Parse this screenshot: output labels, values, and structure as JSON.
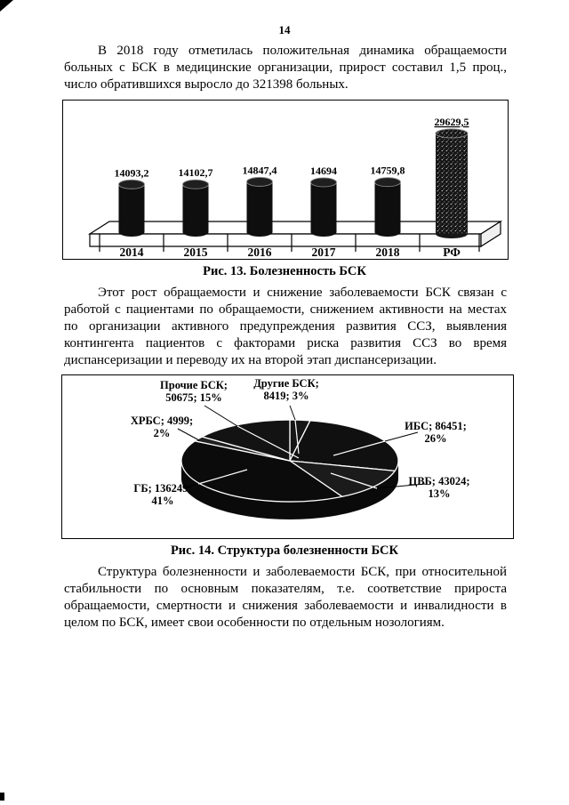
{
  "page": {
    "number": "14"
  },
  "paragraphs": {
    "p1": "В 2018 году отметилась положительная динамика обращаемости больных с БСК в медицинские организации, прирост составил 1,5 проц., число обратившихся выросло до 321398 больных.",
    "p2": "Этот рост обращаемости и снижение заболеваемости БСК связан с работой с пациентами по обращаемости, снижением активности на местах по организации активного предупреждения развития ССЗ, выявления контингента пациентов с факторами риска развития ССЗ во время диспансеризации и переводу их на второй этап диспансеризации.",
    "p3": "Структура болезненности и заболеваемости БСК, при относительной стабильности по основным показателям, т.е. соответствие прироста обращаемости, смертности и снижения заболеваемости и инвалидности в целом по БСК, имеет свои особенности по отдельным нозологиям."
  },
  "figures": {
    "fig13_caption": "Рис. 13. Болезненность БСК",
    "fig14_caption": "Рис. 14. Структура болезненности БСК"
  },
  "chart_data": [
    {
      "type": "bar",
      "title": "Болезненность БСК",
      "categories": [
        "2014",
        "2015",
        "2016",
        "2017",
        "2018",
        "РФ"
      ],
      "values": [
        14093.2,
        14102.7,
        14847.4,
        14694,
        14759.8,
        29629.5
      ],
      "value_labels": [
        "14093,2",
        "14102,7",
        "14847,4",
        "14694",
        "14759,8",
        "29629,5"
      ],
      "xlabel": "",
      "ylabel": "",
      "ylim": [
        0,
        30000
      ],
      "grid": false,
      "legend": "none",
      "bar_color": "#0e0e0e"
    },
    {
      "type": "pie",
      "title": "Структура болезненности БСК",
      "labels": [
        "Другие БСК",
        "ИБС",
        "ЦВБ",
        "ГБ",
        "ХРБС",
        "Прочие БСК"
      ],
      "values": [
        8419,
        86451,
        43024,
        136249,
        4999,
        50675
      ],
      "percents": [
        3,
        26,
        13,
        41,
        2,
        15
      ],
      "label_lines": [
        [
          "Другие БСК;",
          "8419; 3%"
        ],
        [
          "ИБС; 86451;",
          "26%"
        ],
        [
          "ЦВБ; 43024;",
          "13%"
        ],
        [
          "ГБ; 136249;",
          "41%"
        ],
        [
          "ХРБС; 4999;",
          "2%"
        ],
        [
          "Прочие БСК;",
          "50675; 15%"
        ]
      ],
      "slice_colors": [
        "#161616",
        "#101010",
        "#1b1b1b",
        "#0b0b0b",
        "#202020",
        "#131313"
      ],
      "legend": "none"
    }
  ]
}
